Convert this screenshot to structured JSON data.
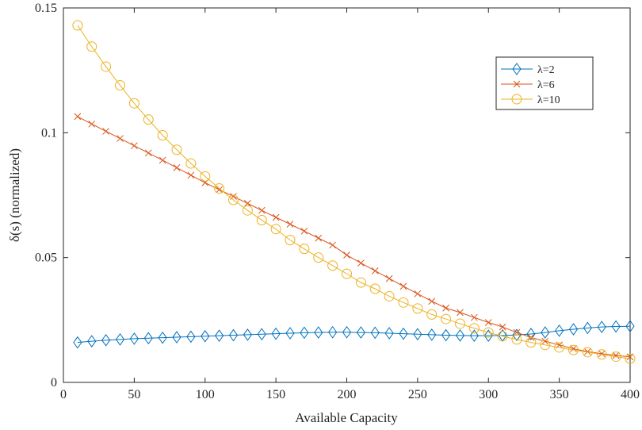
{
  "chart_data": {
    "type": "line",
    "xlabel": "Available Capacity",
    "ylabel": "δ(s) (normalized)",
    "xlim": [
      0,
      400
    ],
    "ylim": [
      0,
      0.15
    ],
    "x_ticks": [
      "0",
      "50",
      "100",
      "150",
      "200",
      "250",
      "300",
      "350",
      "400"
    ],
    "y_ticks": [
      "0",
      "0.05",
      "0.1",
      "0.15"
    ],
    "grid": false,
    "legend_position": "top-right",
    "x": [
      10,
      20,
      30,
      40,
      50,
      60,
      70,
      80,
      90,
      100,
      110,
      120,
      130,
      140,
      150,
      160,
      170,
      180,
      190,
      200,
      210,
      220,
      230,
      240,
      250,
      260,
      270,
      280,
      290,
      300,
      310,
      320,
      330,
      340,
      350,
      360,
      370,
      380,
      390,
      400
    ],
    "series": [
      {
        "name": "λ=2",
        "color": "#0072BD",
        "marker": "diamond",
        "values": [
          0.016,
          0.0165,
          0.0169,
          0.0172,
          0.0175,
          0.0177,
          0.0179,
          0.0181,
          0.0183,
          0.0185,
          0.0187,
          0.0189,
          0.0191,
          0.0193,
          0.0195,
          0.0197,
          0.0199,
          0.02,
          0.0201,
          0.0201,
          0.02,
          0.0199,
          0.0197,
          0.0195,
          0.0193,
          0.0191,
          0.0189,
          0.0188,
          0.0187,
          0.0187,
          0.0188,
          0.019,
          0.0194,
          0.02,
          0.0207,
          0.0213,
          0.0218,
          0.0222,
          0.0224,
          0.0225
        ]
      },
      {
        "name": "λ=6",
        "color": "#D95319",
        "marker": "x",
        "values": [
          0.1065,
          0.1035,
          0.1006,
          0.0977,
          0.0948,
          0.0919,
          0.089,
          0.086,
          0.083,
          0.08,
          0.0772,
          0.0745,
          0.0717,
          0.0689,
          0.0661,
          0.0634,
          0.0606,
          0.0578,
          0.055,
          0.051,
          0.0478,
          0.0447,
          0.0416,
          0.0385,
          0.0355,
          0.0325,
          0.0298,
          0.028,
          0.026,
          0.024,
          0.0222,
          0.02,
          0.018,
          0.0165,
          0.015,
          0.0135,
          0.0123,
          0.0115,
          0.0108,
          0.0102
        ]
      },
      {
        "name": "λ=10",
        "color": "#EDB120",
        "marker": "circle",
        "values": [
          0.143,
          0.1345,
          0.1265,
          0.119,
          0.1118,
          0.1053,
          0.099,
          0.0932,
          0.0877,
          0.0825,
          0.0777,
          0.0731,
          0.0689,
          0.065,
          0.0614,
          0.057,
          0.0535,
          0.05,
          0.0468,
          0.0435,
          0.04,
          0.0375,
          0.0345,
          0.032,
          0.0296,
          0.0272,
          0.0254,
          0.0235,
          0.0217,
          0.02,
          0.0185,
          0.0172,
          0.016,
          0.015,
          0.014,
          0.013,
          0.0121,
          0.0112,
          0.0103,
          0.0095
        ]
      }
    ]
  }
}
